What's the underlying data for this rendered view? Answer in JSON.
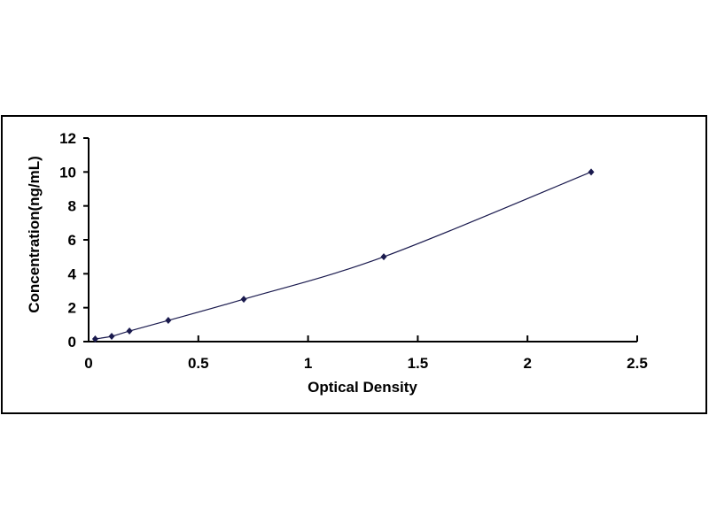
{
  "chart_data": {
    "type": "line",
    "title": "",
    "xlabel": "Optical Density",
    "ylabel": "Concentration(ng/mL)",
    "xlim": [
      0,
      2.5
    ],
    "ylim": [
      0,
      12
    ],
    "xticks": [
      "0",
      "0.5",
      "1",
      "1.5",
      "2",
      "2.5"
    ],
    "yticks": [
      "0",
      "2",
      "4",
      "6",
      "8",
      "10",
      "12"
    ],
    "grid": false,
    "legend": "none",
    "series": [
      {
        "x": [
          0.03,
          0.105,
          0.186,
          0.363,
          0.707,
          1.345,
          2.29
        ],
        "y": [
          0.156,
          0.312,
          0.625,
          1.25,
          2.5,
          5,
          10
        ],
        "marker": "diamond",
        "line": "smooth",
        "color": "#1a1a4e"
      }
    ]
  }
}
